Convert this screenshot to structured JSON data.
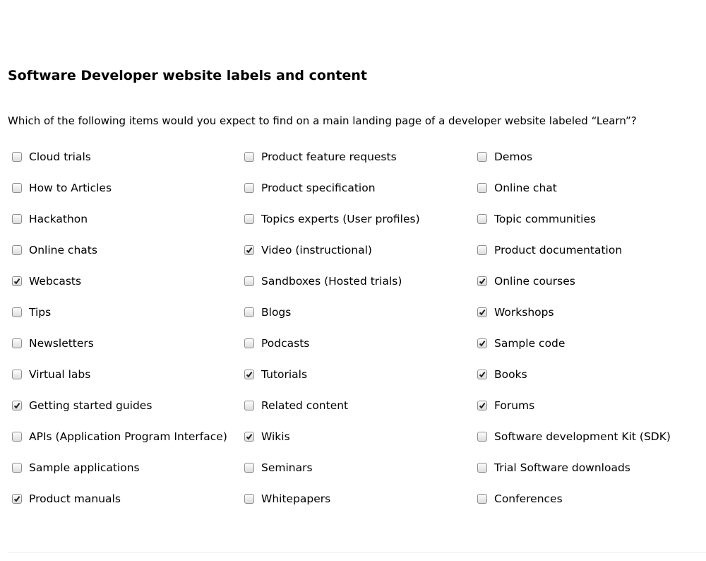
{
  "survey": {
    "title": "Software Developer website labels and content",
    "question": "Which of the following items would you expect to find on a main landing page of a developer website labeled “Learn”?"
  },
  "columns": [
    [
      {
        "label": "Cloud trials",
        "checked": false
      },
      {
        "label": "How to Articles",
        "checked": false
      },
      {
        "label": "Hackathon",
        "checked": false
      },
      {
        "label": "Online chats",
        "checked": false
      },
      {
        "label": "Webcasts",
        "checked": true
      },
      {
        "label": "Tips",
        "checked": false
      },
      {
        "label": "Newsletters",
        "checked": false
      },
      {
        "label": "Virtual labs",
        "checked": false
      },
      {
        "label": "Getting started guides",
        "checked": true
      },
      {
        "label": "APIs (Application Program Interface)",
        "checked": false
      },
      {
        "label": "Sample applications",
        "checked": false
      },
      {
        "label": "Product manuals",
        "checked": true
      }
    ],
    [
      {
        "label": "Product feature requests",
        "checked": false
      },
      {
        "label": "Product specification",
        "checked": false
      },
      {
        "label": "Topics experts (User profiles)",
        "checked": false
      },
      {
        "label": "Video (instructional)",
        "checked": true
      },
      {
        "label": "Sandboxes (Hosted trials)",
        "checked": false
      },
      {
        "label": "Blogs",
        "checked": false
      },
      {
        "label": "Podcasts",
        "checked": false
      },
      {
        "label": "Tutorials",
        "checked": true
      },
      {
        "label": "Related content",
        "checked": false
      },
      {
        "label": "Wikis",
        "checked": true
      },
      {
        "label": "Seminars",
        "checked": false
      },
      {
        "label": "Whitepapers",
        "checked": false
      }
    ],
    [
      {
        "label": "Demos",
        "checked": false
      },
      {
        "label": "Online chat",
        "checked": false
      },
      {
        "label": "Topic communities",
        "checked": false
      },
      {
        "label": "Product documentation",
        "checked": false
      },
      {
        "label": "Online courses",
        "checked": true
      },
      {
        "label": "Workshops",
        "checked": true
      },
      {
        "label": "Sample code",
        "checked": true
      },
      {
        "label": "Books",
        "checked": true
      },
      {
        "label": "Forums",
        "checked": true
      },
      {
        "label": "Software development Kit (SDK)",
        "checked": false
      },
      {
        "label": "Trial Software downloads",
        "checked": false
      },
      {
        "label": "Conferences",
        "checked": false
      }
    ]
  ]
}
